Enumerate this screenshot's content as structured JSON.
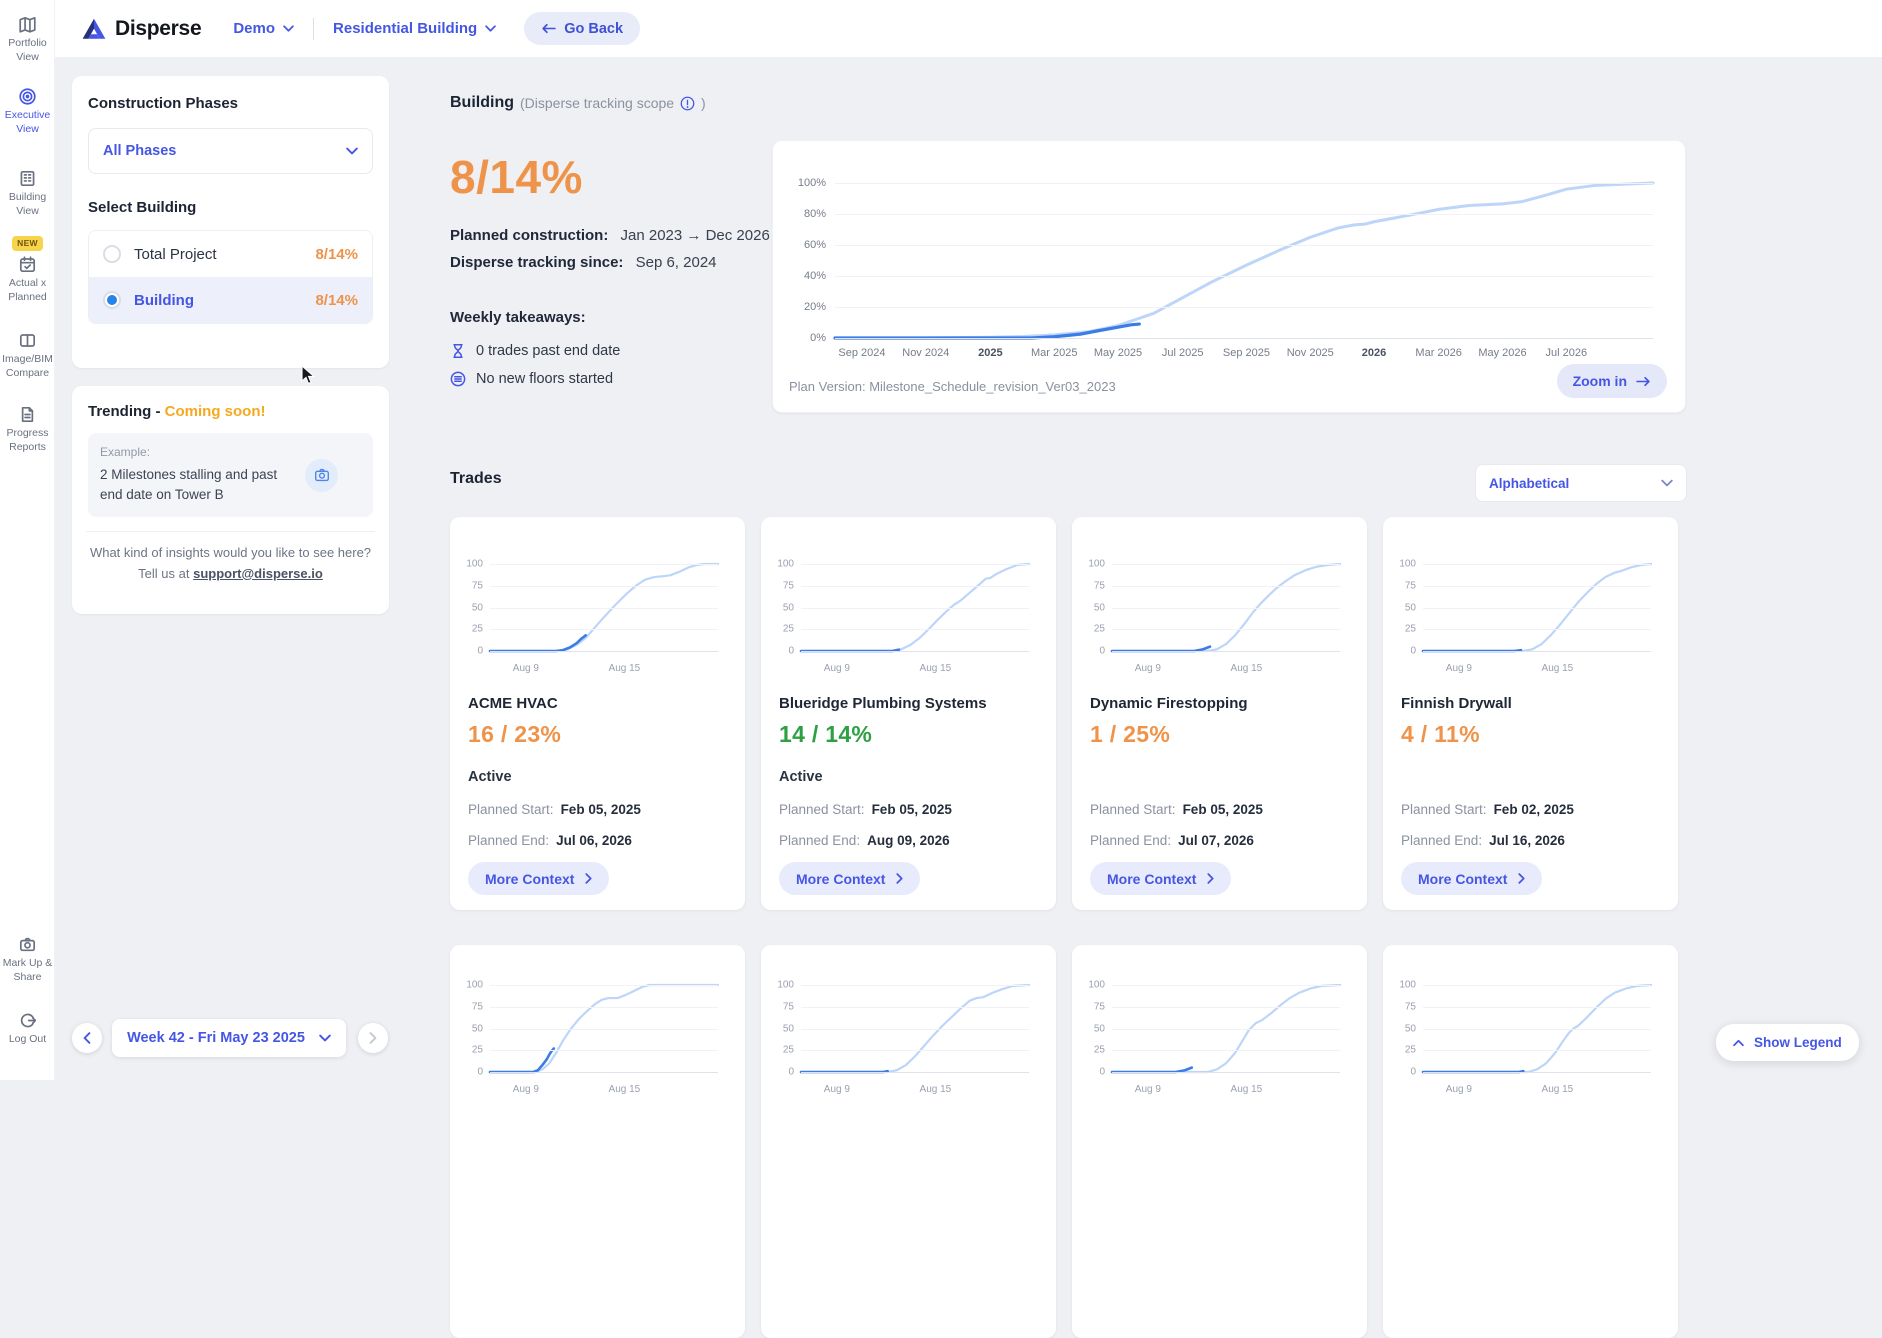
{
  "brand": {
    "name": "Disperse"
  },
  "topbar": {
    "project": "Demo",
    "site": "Residential Building",
    "go_back": "Go Back"
  },
  "sidebar": {
    "items": [
      {
        "label": "Portfolio View"
      },
      {
        "label": "Executive View"
      },
      {
        "label": "Building View"
      },
      {
        "label": "Actual x Planned",
        "badge": "NEW"
      },
      {
        "label": "Image/BIM Compare"
      },
      {
        "label": "Progress Reports"
      }
    ],
    "markup_share": "Mark Up & Share",
    "log_out": "Log Out"
  },
  "phases": {
    "title": "Construction Phases",
    "dropdown_value": "All Phases",
    "select_label": "Select Building",
    "options": [
      {
        "name": "Total Project",
        "value": "8/14%"
      },
      {
        "name": "Building",
        "value": "8/14%"
      }
    ]
  },
  "trending": {
    "title": "Trending -",
    "badge": "Coming soon!",
    "example_label": "Example:",
    "example_text": "2 Milestones stalling and past end date on Tower B",
    "prompt": "What kind of insights would you like to see here?",
    "prompt2": "Tell us at",
    "email": "support@disperse.io"
  },
  "week": {
    "label": "Week 42 - Fri May 23 2025"
  },
  "legend": {
    "label": "Show Legend"
  },
  "building": {
    "title": "Building",
    "scope": "(Disperse tracking scope",
    "scope_close": ")",
    "value": "8/14%",
    "planned_label": "Planned construction:",
    "planned_value": "Jan 2023 → Dec 2026",
    "tracking_label": "Disperse tracking since:",
    "tracking_value": "Sep 6, 2024",
    "takeaways_title": "Weekly takeaways:",
    "takeaway1": "0 trades past end date",
    "takeaway2": "No new floors started",
    "plan_version": "Plan Version: Milestone_Schedule_revision_Ver03_2023",
    "zoom_in": "Zoom in"
  },
  "main_chart": {
    "type": "line",
    "y_ticks": [
      "100%",
      "80%",
      "60%",
      "40%",
      "20%",
      "0%"
    ],
    "x_ticks": [
      {
        "label": "Sep 2024",
        "pos": 0.033
      },
      {
        "label": "Nov 2024",
        "pos": 0.111
      },
      {
        "label": "2025",
        "pos": 0.19
      },
      {
        "label": "Mar 2025",
        "pos": 0.268
      },
      {
        "label": "May 2025",
        "pos": 0.346
      },
      {
        "label": "Jul 2025",
        "pos": 0.425
      },
      {
        "label": "Sep 2025",
        "pos": 0.503
      },
      {
        "label": "Nov 2025",
        "pos": 0.581
      },
      {
        "label": "2026",
        "pos": 0.659
      },
      {
        "label": "Mar 2026",
        "pos": 0.738
      },
      {
        "label": "May 2026",
        "pos": 0.816
      },
      {
        "label": "Jul 2026",
        "pos": 0.894
      }
    ],
    "planned": [
      [
        0,
        0
      ],
      [
        0.1,
        0
      ],
      [
        0.19,
        0.5
      ],
      [
        0.23,
        1
      ],
      [
        0.268,
        2
      ],
      [
        0.31,
        4
      ],
      [
        0.346,
        8
      ],
      [
        0.39,
        16
      ],
      [
        0.425,
        26
      ],
      [
        0.46,
        36
      ],
      [
        0.503,
        47
      ],
      [
        0.545,
        57
      ],
      [
        0.581,
        65
      ],
      [
        0.615,
        71
      ],
      [
        0.635,
        73
      ],
      [
        0.648,
        73.5
      ],
      [
        0.659,
        75
      ],
      [
        0.7,
        79
      ],
      [
        0.738,
        83
      ],
      [
        0.775,
        85.5
      ],
      [
        0.816,
        86.5
      ],
      [
        0.84,
        88
      ],
      [
        0.868,
        92
      ],
      [
        0.894,
        96
      ],
      [
        0.93,
        98.5
      ],
      [
        1,
        100
      ]
    ],
    "actual": [
      [
        0,
        0
      ],
      [
        0.24,
        0
      ],
      [
        0.268,
        0.8
      ],
      [
        0.3,
        2.5
      ],
      [
        0.325,
        5
      ],
      [
        0.346,
        7
      ],
      [
        0.362,
        8.5
      ],
      [
        0.372,
        9
      ]
    ]
  },
  "trades": {
    "title": "Trades",
    "sort": "Alphabetical",
    "start_label": "Planned Start:",
    "end_label": "Planned End:",
    "more": "More Context",
    "axis": {
      "y_ticks": [
        "100",
        "75",
        "50",
        "25",
        "0"
      ],
      "x_ticks": [
        {
          "label": "Aug 9",
          "pos": 0.1
        },
        {
          "label": "Aug 15",
          "pos": 0.52
        }
      ]
    },
    "cards": [
      {
        "name": "ACME HVAC",
        "value": "16 / 23%",
        "color": "#ee9349",
        "status": "Active",
        "start": "Feb 05, 2025",
        "end": "Jul 06, 2026",
        "chart": {
          "planned": [
            [
              0,
              0
            ],
            [
              0.3,
              0
            ],
            [
              0.34,
              2
            ],
            [
              0.38,
              7
            ],
            [
              0.42,
              15
            ],
            [
              0.46,
              27
            ],
            [
              0.5,
              39
            ],
            [
              0.55,
              53
            ],
            [
              0.6,
              66
            ],
            [
              0.64,
              75
            ],
            [
              0.68,
              82
            ],
            [
              0.72,
              85
            ],
            [
              0.76,
              86
            ],
            [
              0.79,
              87
            ],
            [
              0.83,
              91
            ],
            [
              0.87,
              96
            ],
            [
              0.91,
              99
            ],
            [
              0.94,
              100
            ],
            [
              1,
              100
            ]
          ],
          "actual": [
            [
              0,
              0
            ],
            [
              0.29,
              0
            ],
            [
              0.32,
              1
            ],
            [
              0.35,
              4
            ],
            [
              0.38,
              9
            ],
            [
              0.4,
              14
            ],
            [
              0.42,
              18
            ]
          ]
        }
      },
      {
        "name": "Blueridge Plumbing Systems",
        "value": "14 / 14%",
        "color": "#2ea043",
        "status": "Active",
        "start": "Feb 05, 2025",
        "end": "Aug 09, 2026",
        "chart": {
          "planned": [
            [
              0,
              0
            ],
            [
              0.4,
              0
            ],
            [
              0.44,
              2
            ],
            [
              0.48,
              7
            ],
            [
              0.52,
              15
            ],
            [
              0.56,
              25
            ],
            [
              0.6,
              36
            ],
            [
              0.64,
              46
            ],
            [
              0.67,
              53
            ],
            [
              0.7,
              58
            ],
            [
              0.74,
              67
            ],
            [
              0.78,
              76
            ],
            [
              0.81,
              83
            ],
            [
              0.83,
              84
            ],
            [
              0.86,
              89
            ],
            [
              0.9,
              94
            ],
            [
              0.95,
              99
            ],
            [
              1,
              100
            ]
          ],
          "actual": [
            [
              0,
              0
            ],
            [
              0.4,
              0
            ],
            [
              0.43,
              1.5
            ]
          ]
        }
      },
      {
        "name": "Dynamic Firestopping",
        "value": "1 / 25%",
        "color": "#ee9349",
        "status": "",
        "start": "Feb 05, 2025",
        "end": "Jul 07, 2026",
        "chart": {
          "planned": [
            [
              0,
              0
            ],
            [
              0.42,
              0
            ],
            [
              0.46,
              2
            ],
            [
              0.5,
              8
            ],
            [
              0.54,
              18
            ],
            [
              0.58,
              31
            ],
            [
              0.62,
              45
            ],
            [
              0.65,
              54
            ],
            [
              0.68,
              62
            ],
            [
              0.72,
              72
            ],
            [
              0.76,
              80
            ],
            [
              0.8,
              87
            ],
            [
              0.85,
              93
            ],
            [
              0.9,
              97
            ],
            [
              0.95,
              99
            ],
            [
              1,
              100
            ]
          ],
          "actual": [
            [
              0,
              0
            ],
            [
              0.36,
              0
            ],
            [
              0.4,
              2
            ],
            [
              0.43,
              5
            ]
          ]
        }
      },
      {
        "name": "Finnish Drywall",
        "value": "4 / 11%",
        "color": "#ee9349",
        "status": "",
        "start": "Feb 02, 2025",
        "end": "Jul 16, 2026",
        "chart": {
          "planned": [
            [
              0,
              0
            ],
            [
              0.44,
              0
            ],
            [
              0.48,
              2
            ],
            [
              0.52,
              8
            ],
            [
              0.56,
              18
            ],
            [
              0.6,
              30
            ],
            [
              0.64,
              43
            ],
            [
              0.68,
              56
            ],
            [
              0.72,
              67
            ],
            [
              0.76,
              77
            ],
            [
              0.8,
              85
            ],
            [
              0.84,
              90
            ],
            [
              0.87,
              92
            ],
            [
              0.91,
              96
            ],
            [
              0.96,
              99
            ],
            [
              1,
              100
            ]
          ],
          "actual": [
            [
              0,
              0
            ],
            [
              0.4,
              0
            ],
            [
              0.43,
              1
            ]
          ]
        }
      }
    ],
    "row2_charts": [
      {
        "planned": [
          [
            0,
            0
          ],
          [
            0.2,
            0
          ],
          [
            0.23,
            3
          ],
          [
            0.26,
            10
          ],
          [
            0.29,
            22
          ],
          [
            0.32,
            36
          ],
          [
            0.35,
            48
          ],
          [
            0.39,
            61
          ],
          [
            0.43,
            71
          ],
          [
            0.46,
            78
          ],
          [
            0.49,
            83
          ],
          [
            0.52,
            85
          ],
          [
            0.56,
            85
          ],
          [
            0.59,
            88
          ],
          [
            0.63,
            93
          ],
          [
            0.67,
            98
          ],
          [
            0.7,
            100
          ],
          [
            1,
            100
          ]
        ],
        "actual": [
          [
            0,
            0
          ],
          [
            0.19,
            0
          ],
          [
            0.21,
            2
          ],
          [
            0.23,
            8
          ],
          [
            0.25,
            15
          ],
          [
            0.26,
            20
          ],
          [
            0.27,
            24
          ],
          [
            0.28,
            27
          ]
        ]
      },
      {
        "planned": [
          [
            0,
            0
          ],
          [
            0.38,
            0
          ],
          [
            0.42,
            2
          ],
          [
            0.46,
            8
          ],
          [
            0.5,
            18
          ],
          [
            0.54,
            30
          ],
          [
            0.58,
            42
          ],
          [
            0.62,
            53
          ],
          [
            0.66,
            63
          ],
          [
            0.7,
            73
          ],
          [
            0.74,
            82
          ],
          [
            0.77,
            85
          ],
          [
            0.8,
            86
          ],
          [
            0.84,
            91
          ],
          [
            0.88,
            95
          ],
          [
            0.93,
            99
          ],
          [
            1,
            100
          ]
        ],
        "actual": [
          [
            0,
            0
          ],
          [
            0.36,
            0
          ],
          [
            0.38,
            1
          ]
        ]
      },
      {
        "planned": [
          [
            0,
            0
          ],
          [
            0.42,
            0
          ],
          [
            0.46,
            3
          ],
          [
            0.5,
            10
          ],
          [
            0.54,
            22
          ],
          [
            0.57,
            35
          ],
          [
            0.6,
            48
          ],
          [
            0.63,
            56
          ],
          [
            0.66,
            60
          ],
          [
            0.7,
            68
          ],
          [
            0.74,
            77
          ],
          [
            0.78,
            85
          ],
          [
            0.82,
            91
          ],
          [
            0.87,
            96
          ],
          [
            0.92,
            99
          ],
          [
            1,
            100
          ]
        ],
        "actual": [
          [
            0,
            0
          ],
          [
            0.28,
            0
          ],
          [
            0.32,
            2
          ],
          [
            0.35,
            5
          ]
        ]
      },
      {
        "planned": [
          [
            0,
            0
          ],
          [
            0.46,
            0
          ],
          [
            0.5,
            3
          ],
          [
            0.54,
            10
          ],
          [
            0.58,
            22
          ],
          [
            0.61,
            34
          ],
          [
            0.64,
            45
          ],
          [
            0.66,
            50
          ],
          [
            0.68,
            53
          ],
          [
            0.72,
            63
          ],
          [
            0.76,
            74
          ],
          [
            0.8,
            84
          ],
          [
            0.84,
            91
          ],
          [
            0.89,
            96
          ],
          [
            0.94,
            99
          ],
          [
            1,
            100
          ]
        ],
        "actual": [
          [
            0,
            0
          ],
          [
            0.42,
            0
          ],
          [
            0.44,
            1
          ]
        ]
      }
    ]
  }
}
